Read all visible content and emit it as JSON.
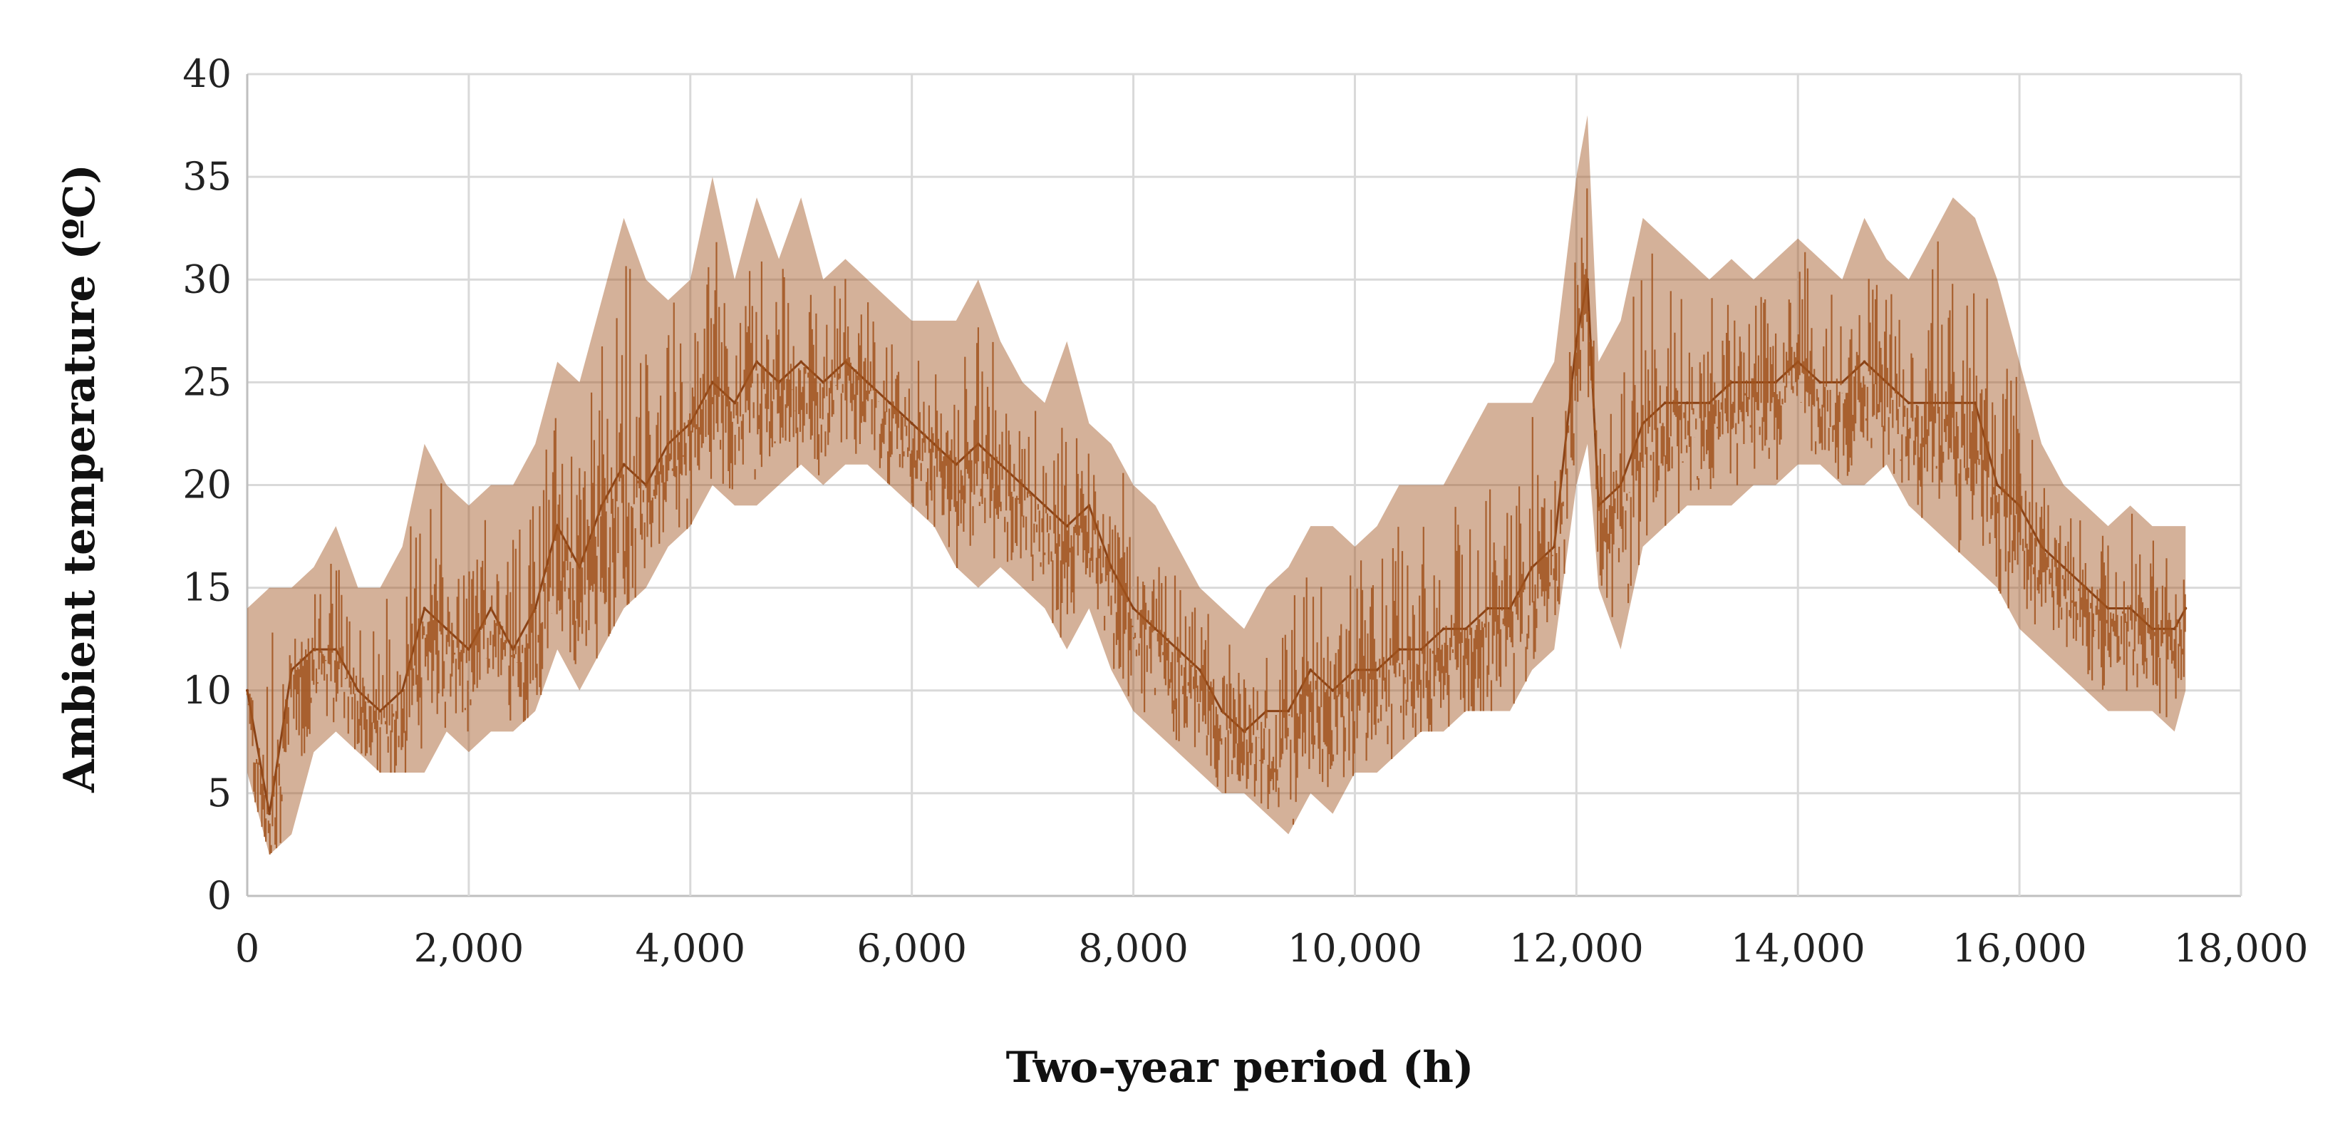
{
  "chart_data": {
    "type": "line",
    "title": "",
    "xlabel": "Two-year period (h)",
    "ylabel": "Ambient temperature (ºC)",
    "xlim": [
      0,
      18000
    ],
    "ylim": [
      0,
      40
    ],
    "x_ticks": [
      0,
      2000,
      4000,
      6000,
      8000,
      10000,
      12000,
      14000,
      16000,
      18000
    ],
    "x_tick_labels": [
      "0",
      "2,000",
      "4,000",
      "6,000",
      "8,000",
      "10,000",
      "12,000",
      "14,000",
      "16,000",
      "18,000"
    ],
    "y_ticks": [
      0,
      5,
      10,
      15,
      20,
      25,
      30,
      35,
      40
    ],
    "y_tick_labels": [
      "0",
      "5",
      "10",
      "15",
      "20",
      "25",
      "30",
      "35",
      "40"
    ],
    "grid": true,
    "legend": "none",
    "series": [
      {
        "color": "#a0521c",
        "x": [
          0,
          200,
          400,
          600,
          800,
          1000,
          1200,
          1400,
          1600,
          1800,
          2000,
          2200,
          2400,
          2600,
          2800,
          3000,
          3200,
          3400,
          3600,
          3800,
          4000,
          4200,
          4400,
          4600,
          4800,
          5000,
          5200,
          5400,
          5600,
          5800,
          6000,
          6200,
          6400,
          6600,
          6800,
          7000,
          7200,
          7400,
          7600,
          7800,
          8000,
          8200,
          8400,
          8600,
          8800,
          9000,
          9200,
          9400,
          9600,
          9800,
          10000,
          10200,
          10400,
          10600,
          10800,
          11000,
          11200,
          11400,
          11600,
          11800,
          12000,
          12100,
          12200,
          12400,
          12600,
          12800,
          13000,
          13200,
          13400,
          13600,
          13800,
          14000,
          14200,
          14400,
          14600,
          14800,
          15000,
          15200,
          15400,
          15600,
          15800,
          16000,
          16200,
          16400,
          16600,
          16800,
          17000,
          17200,
          17400,
          17500
        ],
        "y": [
          10,
          4,
          11,
          12,
          12,
          10,
          9,
          10,
          14,
          13,
          12,
          14,
          12,
          14,
          18,
          16,
          19,
          21,
          20,
          22,
          23,
          25,
          24,
          26,
          25,
          26,
          25,
          26,
          25,
          24,
          23,
          22,
          21,
          22,
          21,
          20,
          19,
          18,
          19,
          16,
          14,
          13,
          12,
          11,
          9,
          8,
          9,
          9,
          11,
          10,
          11,
          11,
          12,
          12,
          13,
          13,
          14,
          14,
          16,
          17,
          27,
          30,
          19,
          20,
          23,
          24,
          24,
          24,
          25,
          25,
          25,
          26,
          25,
          25,
          26,
          25,
          24,
          24,
          24,
          24,
          20,
          19,
          17,
          16,
          15,
          14,
          14,
          13,
          13,
          14
        ],
        "y_high": [
          14,
          15,
          15,
          16,
          18,
          15,
          15,
          17,
          22,
          20,
          19,
          20,
          20,
          22,
          26,
          25,
          29,
          33,
          30,
          29,
          30,
          35,
          30,
          34,
          31,
          34,
          30,
          31,
          30,
          29,
          28,
          28,
          28,
          30,
          27,
          25,
          24,
          27,
          23,
          22,
          20,
          19,
          17,
          15,
          14,
          13,
          15,
          16,
          18,
          18,
          17,
          18,
          20,
          20,
          20,
          22,
          24,
          24,
          24,
          26,
          35,
          38,
          26,
          28,
          33,
          32,
          31,
          30,
          31,
          30,
          31,
          32,
          31,
          30,
          33,
          31,
          30,
          32,
          34,
          33,
          30,
          26,
          22,
          20,
          19,
          18,
          19,
          18,
          18,
          18
        ],
        "y_low": [
          6,
          2,
          3,
          7,
          8,
          7,
          6,
          6,
          6,
          8,
          7,
          8,
          8,
          9,
          12,
          10,
          12,
          14,
          15,
          17,
          18,
          20,
          19,
          19,
          20,
          21,
          20,
          21,
          21,
          20,
          19,
          18,
          16,
          15,
          16,
          15,
          14,
          12,
          14,
          11,
          9,
          8,
          7,
          6,
          5,
          5,
          4,
          3,
          5,
          4,
          6,
          6,
          7,
          8,
          8,
          9,
          9,
          9,
          11,
          12,
          20,
          22,
          15,
          12,
          17,
          18,
          19,
          19,
          19,
          20,
          20,
          21,
          21,
          20,
          20,
          21,
          19,
          18,
          17,
          16,
          15,
          13,
          12,
          11,
          10,
          9,
          9,
          9,
          8,
          10
        ]
      }
    ]
  }
}
